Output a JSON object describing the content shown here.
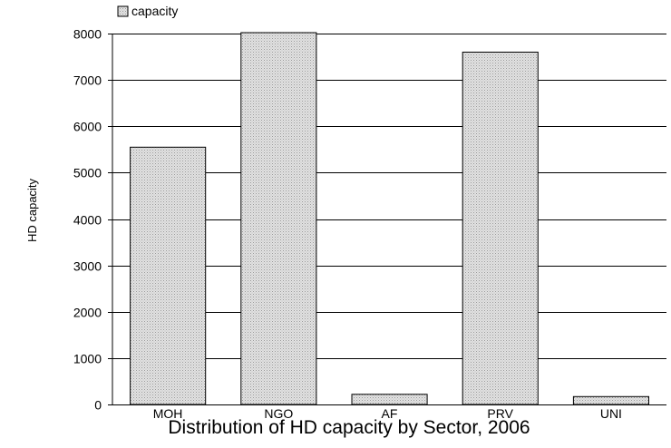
{
  "chart_data": {
    "type": "bar",
    "title": "Distribution of HD capacity by Sector, 2006",
    "xlabel": "",
    "ylabel": "HD capacity",
    "categories": [
      "MOH",
      "NGO",
      "AF",
      "PRV",
      "UNI"
    ],
    "series": [
      {
        "name": "capacity",
        "values": [
          5550,
          8020,
          220,
          7600,
          170
        ]
      }
    ],
    "ylim": [
      0,
      8000
    ],
    "yticks": [
      0,
      1000,
      2000,
      3000,
      4000,
      5000,
      6000,
      7000,
      8000
    ],
    "grid": true,
    "legend_position": "top-left",
    "colors": {
      "bar_fill": "#d8d8d8",
      "bar_stroke": "#000000",
      "grid": "#000000"
    }
  }
}
